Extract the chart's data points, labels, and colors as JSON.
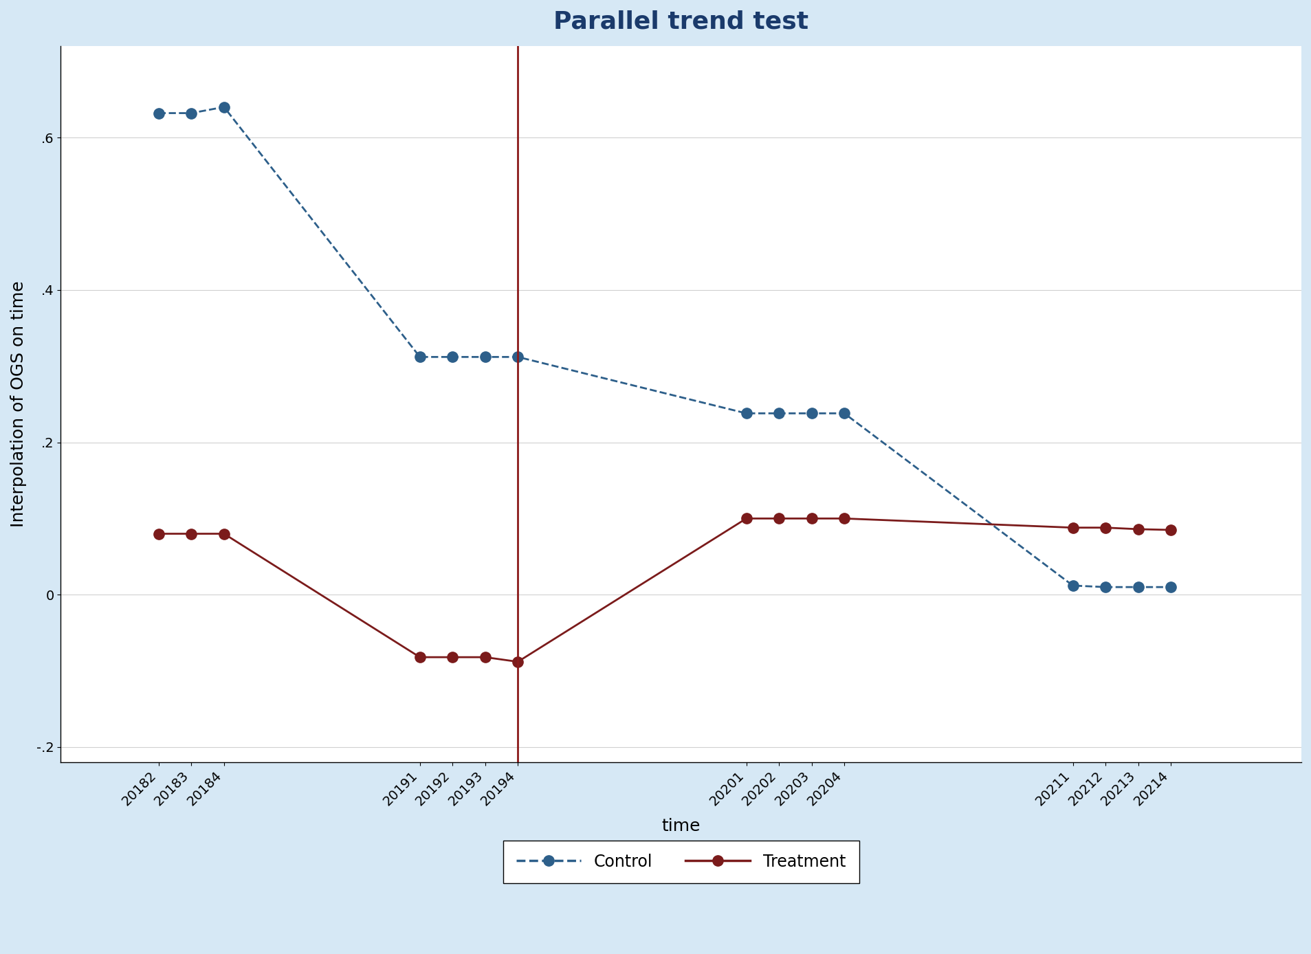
{
  "title": "Parallel trend test",
  "xlabel": "time",
  "ylabel": "Interpolation of OGS on time",
  "background_color": "#d6e8f5",
  "plot_background": "#ffffff",
  "x_labels": [
    "20182",
    "20183",
    "20184",
    "20191",
    "20192",
    "20193",
    "20194",
    "20201",
    "20202",
    "20203",
    "20204",
    "20211",
    "20212",
    "20213",
    "20214"
  ],
  "x_positions": [
    1.0,
    1.5,
    2.0,
    5.0,
    5.5,
    6.0,
    6.5,
    10.0,
    10.5,
    11.0,
    11.5,
    15.0,
    15.5,
    16.0,
    16.5
  ],
  "vertical_line_x": 6.5,
  "control_y": [
    0.632,
    0.632,
    0.64,
    0.312,
    0.312,
    0.312,
    0.312,
    0.238,
    0.238,
    0.238,
    0.238,
    0.012,
    0.01,
    0.01,
    0.01
  ],
  "treatment_y": [
    0.08,
    0.08,
    0.08,
    -0.082,
    -0.082,
    -0.082,
    -0.088,
    0.1,
    0.1,
    0.1,
    0.1,
    0.088,
    0.088,
    0.086,
    0.085
  ],
  "control_color": "#2d5f8a",
  "treatment_color": "#7b1b1b",
  "vline_color": "#8b1a1a",
  "yticks": [
    -0.2,
    0.0,
    0.2,
    0.4,
    0.6
  ],
  "ytick_labels": [
    "-.2",
    "0",
    ".2",
    ".4",
    ".6"
  ],
  "ylim": [
    -0.22,
    0.72
  ],
  "xlim": [
    -0.5,
    18.5
  ],
  "title_fontsize": 26,
  "axis_label_fontsize": 18,
  "tick_fontsize": 14,
  "legend_fontsize": 17,
  "marker_size": 11,
  "linewidth": 2.0
}
